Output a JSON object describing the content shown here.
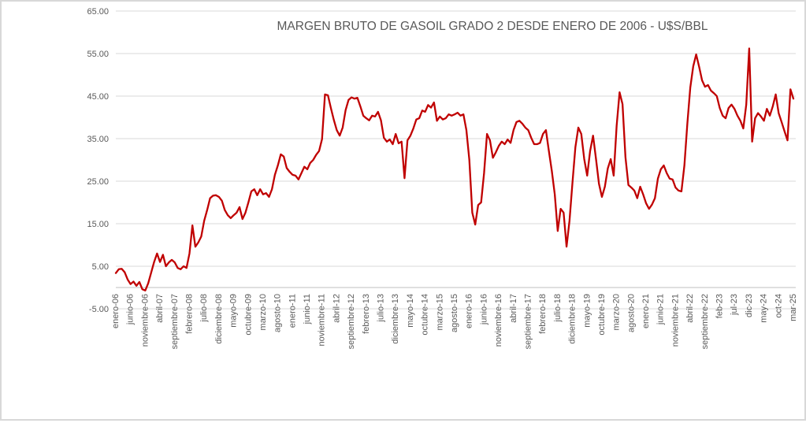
{
  "frame": {
    "background": "#FFFFFF",
    "border_color": "#D8D8D8"
  },
  "chart_data": {
    "type": "line",
    "title": "MARGEN BRUTO DE GASOIL GRADO 2 DESDE ENERO DE 2006 - U$S/BBL",
    "title_color": "#595959",
    "legend_position": "none",
    "x": {
      "frequency": "monthly",
      "first": "enero-06",
      "last": "mar-25",
      "tick_every_months": 5,
      "tick_labels": [
        "enero-06",
        "junio-06",
        "noviembre-06",
        "abril-07",
        "septiembre-07",
        "febrero-08",
        "julio-08",
        "diciembre-08",
        "mayo-09",
        "octubre-09",
        "marzo-10",
        "agosto-10",
        "enero-11",
        "junio-11",
        "noviembre-11",
        "abril-12",
        "septiembre-12",
        "febrero-13",
        "julio-13",
        "diciembre-13",
        "mayo-14",
        "octubre-14",
        "marzo-15",
        "agosto-15",
        "enero-16",
        "junio-16",
        "noviembre-16",
        "abril-17",
        "septiembre-17",
        "febrero-18",
        "julio-18",
        "diciembre-18",
        "mayo-19",
        "octubre-19",
        "marzo-20",
        "agosto-20",
        "enero-21",
        "junio-21",
        "noviembre-21",
        "abril-22",
        "septiembre-22",
        "feb-23",
        "jul-23",
        "dic-23",
        "may-24",
        "oct-24",
        "mar-25"
      ],
      "label_color": "#595959"
    },
    "y": {
      "min": -5,
      "max": 65,
      "major_unit": 10,
      "tick_labels": [
        "65.00",
        "55.00",
        "45.00",
        "35.00",
        "25.00",
        "15.00",
        "5.00",
        "-5.00"
      ],
      "label_color": "#595959"
    },
    "grid": {
      "show": true,
      "color": "#D9D9D9",
      "axis_line_color": "#BFBFBF"
    },
    "series": [
      {
        "name": "Margen bruto gasoil grado 2 (U$S/BBL)",
        "color": "#C00000",
        "values": [
          3.4,
          4.3,
          4.4,
          3.6,
          1.9,
          0.8,
          1.4,
          0.4,
          1.3,
          -0.4,
          -0.7,
          1.0,
          3.5,
          6.0,
          8.0,
          6.0,
          7.7,
          5.0,
          5.9,
          6.5,
          5.9,
          4.6,
          4.3,
          5.0,
          4.6,
          8.0,
          14.6,
          9.6,
          10.6,
          12.0,
          15.7,
          18.2,
          21.0,
          21.6,
          21.7,
          21.3,
          20.4,
          18.2,
          17.0,
          16.3,
          17.0,
          17.6,
          18.9,
          16.1,
          17.6,
          20.0,
          22.6,
          23.1,
          21.7,
          23.1,
          21.9,
          22.2,
          21.3,
          23.1,
          26.5,
          28.7,
          31.3,
          30.8,
          28.1,
          27.2,
          26.5,
          26.3,
          25.4,
          26.9,
          28.4,
          27.8,
          29.3,
          30.0,
          31.2,
          32.1,
          34.9,
          45.4,
          45.2,
          42.2,
          39.4,
          37.0,
          35.7,
          37.6,
          41.7,
          44.1,
          44.7,
          44.4,
          44.6,
          42.6,
          40.4,
          39.8,
          39.3,
          40.4,
          40.2,
          41.3,
          39.3,
          35.2,
          34.3,
          34.8,
          33.7,
          36.1,
          33.9,
          34.3,
          25.7,
          34.6,
          35.7,
          37.4,
          39.5,
          39.8,
          41.6,
          41.3,
          42.9,
          42.3,
          43.5,
          39.2,
          40.2,
          39.5,
          39.8,
          40.7,
          40.4,
          40.7,
          41.1,
          40.4,
          40.7,
          37.0,
          30.0,
          17.6,
          14.8,
          19.4,
          20.0,
          26.9,
          36.1,
          34.6,
          30.5,
          31.8,
          33.3,
          34.3,
          33.7,
          34.8,
          34.0,
          37.0,
          38.9,
          39.2,
          38.5,
          37.6,
          37.0,
          35.2,
          33.7,
          33.7,
          34.0,
          36.1,
          37.0,
          32.1,
          27.4,
          21.9,
          13.3,
          18.5,
          17.6,
          9.6,
          15.7,
          24.6,
          33.0,
          37.6,
          36.1,
          30.2,
          26.3,
          32.1,
          35.7,
          30.2,
          24.4,
          21.3,
          23.7,
          28.0,
          30.2,
          26.3,
          38.0,
          45.9,
          43.1,
          30.6,
          24.1,
          23.5,
          22.8,
          21.0,
          23.7,
          21.9,
          19.8,
          18.5,
          19.5,
          21.0,
          25.6,
          27.8,
          28.7,
          26.9,
          25.6,
          25.4,
          23.5,
          22.8,
          22.6,
          28.7,
          38.5,
          47.0,
          52.0,
          54.8,
          51.9,
          48.7,
          47.2,
          47.6,
          46.3,
          45.7,
          45.0,
          42.2,
          40.4,
          39.8,
          42.2,
          43.0,
          42.0,
          40.4,
          39.2,
          37.4,
          43.0,
          56.2,
          34.3,
          39.8,
          41.0,
          40.2,
          39.2,
          42.0,
          40.4,
          42.6,
          45.4,
          41.0,
          38.9,
          36.7,
          34.6,
          46.6,
          44.4
        ]
      }
    ]
  }
}
